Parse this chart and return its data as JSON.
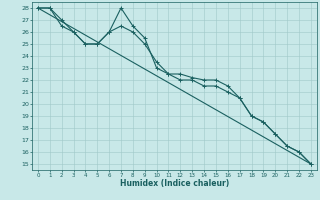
{
  "xlabel": "Humidex (Indice chaleur)",
  "background_color": "#c8e8e8",
  "grid_color": "#a0c8c8",
  "line_color": "#1a6060",
  "xlim": [
    -0.5,
    23.5
  ],
  "ylim": [
    14.5,
    28.5
  ],
  "xticks": [
    0,
    1,
    2,
    3,
    4,
    5,
    6,
    7,
    8,
    9,
    10,
    11,
    12,
    13,
    14,
    15,
    16,
    17,
    18,
    19,
    20,
    21,
    22,
    23
  ],
  "yticks": [
    15,
    16,
    17,
    18,
    19,
    20,
    21,
    22,
    23,
    24,
    25,
    26,
    27,
    28
  ],
  "line1_x": [
    0,
    1,
    2,
    3,
    4,
    5,
    6,
    7,
    8,
    9,
    10,
    11,
    12,
    13,
    14,
    15,
    16,
    17,
    18,
    19,
    20,
    21,
    22,
    23
  ],
  "line1_y": [
    28,
    28,
    27,
    26,
    25,
    25,
    26,
    28,
    26.5,
    25.5,
    23,
    22.5,
    22,
    22,
    21.5,
    21.5,
    21,
    20.5,
    19,
    18.5,
    17.5,
    16.5,
    16,
    15
  ],
  "line2_x": [
    0,
    1,
    2,
    3,
    4,
    5,
    6,
    7,
    8,
    9,
    10,
    11,
    12,
    13,
    14,
    15,
    16,
    17,
    18,
    19,
    20,
    21,
    22,
    23
  ],
  "line2_y": [
    28,
    28,
    26.5,
    26,
    25,
    25,
    26,
    26.5,
    26,
    25,
    23.5,
    22.5,
    22.5,
    22.2,
    22,
    22,
    21.5,
    20.5,
    19,
    18.5,
    17.5,
    16.5,
    16,
    15
  ],
  "line3_x": [
    0,
    23
  ],
  "line3_y": [
    28,
    15
  ]
}
